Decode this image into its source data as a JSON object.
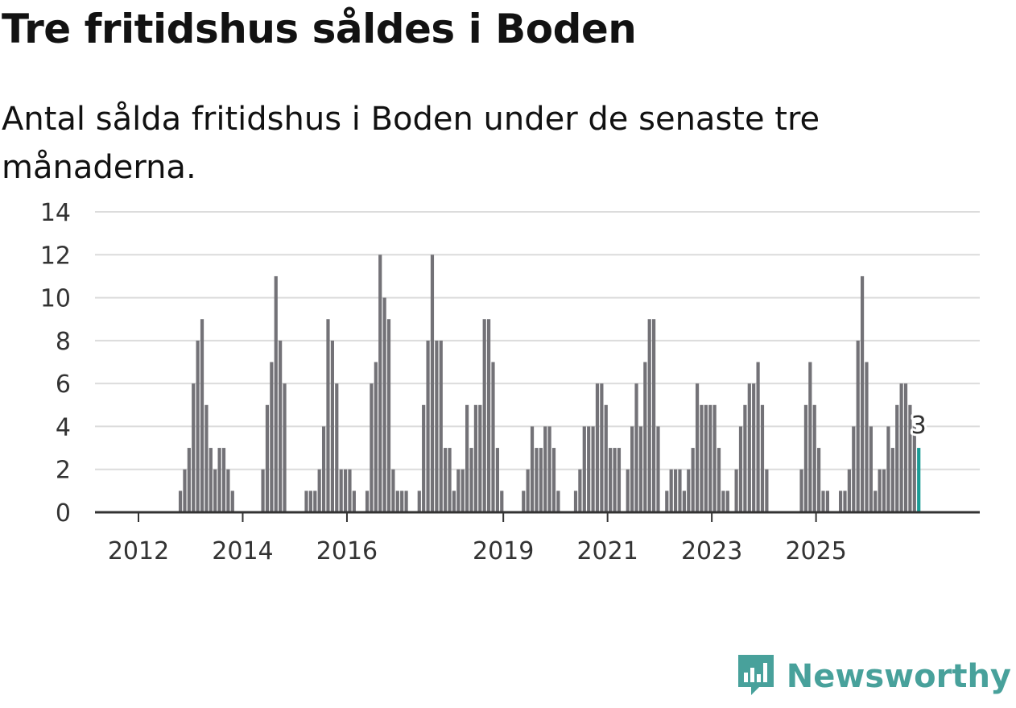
{
  "title": "Tre fritidshus såldes i Boden",
  "subtitle": "Antal sålda fritidshus i Boden under de senaste tre månaderna.",
  "brand": {
    "name": "Newsworthy",
    "icon": "newsworthy-logo-icon",
    "color": "#48a19b"
  },
  "colors": {
    "bar": "#737277",
    "highlight": "#1a9c96",
    "grid": "#dcdcdc",
    "axis": "#333333"
  },
  "chart_data": {
    "type": "bar",
    "title": "Tre fritidshus såldes i Boden",
    "xlabel": "",
    "ylabel": "",
    "ylim": [
      0,
      14
    ],
    "yticks": [
      0,
      2,
      4,
      6,
      8,
      10,
      12,
      14
    ],
    "start": "2011-01",
    "frequency": "monthly",
    "xtick_labels": [
      {
        "label": "2012",
        "index": 0
      },
      {
        "label": "2014",
        "index": 24
      },
      {
        "label": "2016",
        "index": 48
      },
      {
        "label": "2019",
        "index": 84
      },
      {
        "label": "2021",
        "index": 108
      },
      {
        "label": "2023",
        "index": 132
      },
      {
        "label": "2025",
        "index": 156
      }
    ],
    "values": [
      0,
      0,
      0,
      0,
      0,
      0,
      0,
      0,
      0,
      1,
      2,
      3,
      6,
      8,
      9,
      5,
      3,
      2,
      3,
      3,
      2,
      1,
      0,
      0,
      0,
      0,
      0,
      0,
      2,
      5,
      7,
      11,
      8,
      6,
      0,
      0,
      0,
      0,
      1,
      1,
      1,
      2,
      4,
      9,
      8,
      6,
      2,
      2,
      2,
      1,
      0,
      0,
      1,
      6,
      7,
      12,
      10,
      9,
      2,
      1,
      1,
      1,
      0,
      0,
      1,
      5,
      8,
      12,
      8,
      8,
      3,
      3,
      1,
      2,
      2,
      5,
      3,
      5,
      5,
      9,
      9,
      7,
      3,
      1,
      0,
      0,
      0,
      0,
      1,
      2,
      4,
      3,
      3,
      4,
      4,
      3,
      1,
      0,
      0,
      0,
      1,
      2,
      4,
      4,
      4,
      6,
      6,
      5,
      3,
      3,
      3,
      0,
      2,
      4,
      6,
      4,
      7,
      9,
      9,
      4,
      0,
      1,
      2,
      2,
      2,
      1,
      2,
      3,
      6,
      5,
      5,
      5,
      5,
      3,
      1,
      1,
      0,
      2,
      4,
      5,
      6,
      6,
      7,
      5,
      2,
      0,
      0,
      0,
      0,
      0,
      0,
      0,
      2,
      5,
      7,
      5,
      3,
      1,
      1,
      0,
      0,
      1,
      1,
      2,
      4,
      8,
      11,
      7,
      4,
      1,
      2,
      2,
      4,
      3,
      5,
      6,
      6,
      5,
      4,
      3
    ],
    "highlight_index": 179,
    "annotation": {
      "text": "3",
      "index": 179,
      "value": 3
    }
  }
}
